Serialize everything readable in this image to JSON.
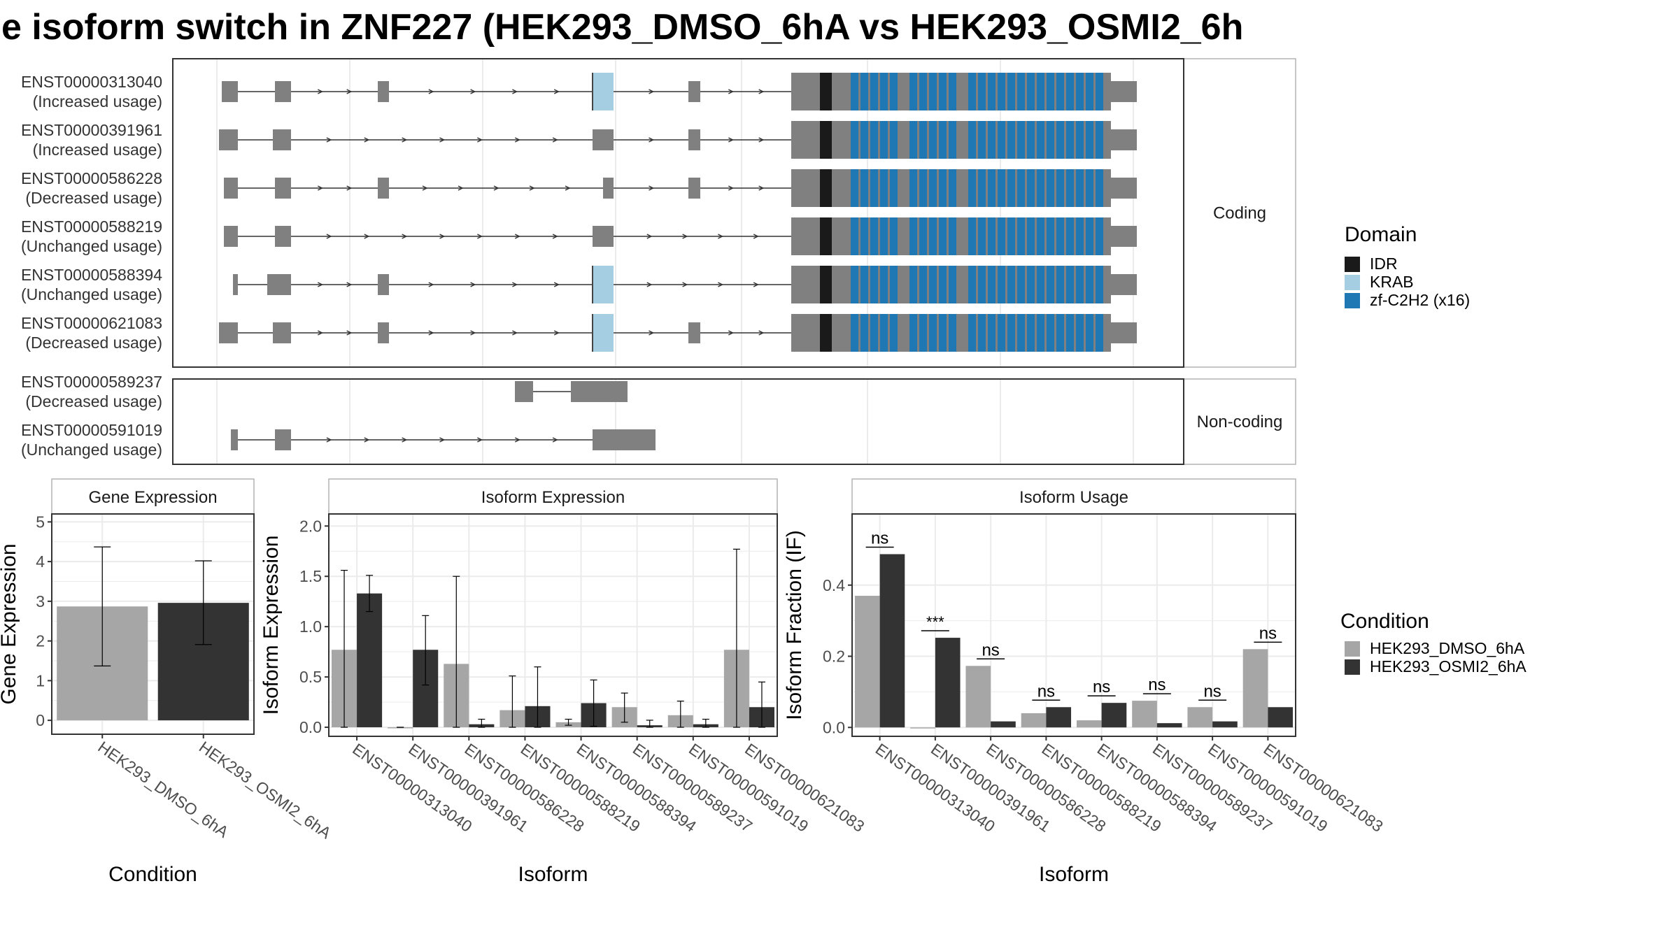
{
  "title": "e isoform switch in ZNF227 (HEK293_DMSO_6hA vs HEK293_OSMI2_6h",
  "colors": {
    "exon": "#808080",
    "IDR": "#1a1a1a",
    "KRAB": "#a6cee3",
    "zf": "#1f78b4",
    "cond1": "#a6a6a6",
    "cond2": "#333333",
    "grid": "#ebebeb",
    "frame": "#333333",
    "strip_border": "#b3b3b3"
  },
  "structure": {
    "coding_label": "Coding",
    "noncoding_label": "Non-coding",
    "coding": [
      {
        "id": "ENST00000313040",
        "usage": "(Increased usage)",
        "variant": "a"
      },
      {
        "id": "ENST00000391961",
        "usage": "(Increased usage)",
        "variant": "b"
      },
      {
        "id": "ENST00000586228",
        "usage": "(Decreased usage)",
        "variant": "c"
      },
      {
        "id": "ENST00000588219",
        "usage": "(Unchanged usage)",
        "variant": "d"
      },
      {
        "id": "ENST00000588394",
        "usage": "(Unchanged usage)",
        "variant": "e"
      },
      {
        "id": "ENST00000621083",
        "usage": "(Decreased usage)",
        "variant": "f"
      }
    ],
    "noncoding": [
      {
        "id": "ENST00000589237",
        "usage": "(Decreased usage)",
        "variant": "g"
      },
      {
        "id": "ENST00000591019",
        "usage": "(Unchanged usage)",
        "variant": "h"
      }
    ],
    "domain_legend": {
      "title": "Domain",
      "items": [
        {
          "name": "IDR",
          "color_key": "IDR"
        },
        {
          "name": "KRAB",
          "color_key": "KRAB"
        },
        {
          "name": "zf-C2H2 (x16)",
          "color_key": "zf"
        }
      ]
    }
  },
  "condition_legend": {
    "title": "Condition",
    "items": [
      "HEK293_DMSO_6hA",
      "HEK293_OSMI2_6hA"
    ]
  },
  "chart_data": [
    {
      "type": "bar",
      "title": "Gene Expression",
      "xlabel": "Condition",
      "ylabel": "Gene Expression",
      "ylim": [
        -0.35,
        5.2
      ],
      "yticks": [
        0,
        1,
        2,
        3,
        4,
        5
      ],
      "categories": [
        "HEK293_DMSO_6hA",
        "HEK293_OSMI2_6hA"
      ],
      "values": [
        2.87,
        2.96
      ],
      "errors_low": [
        1.37,
        1.91
      ],
      "errors_high": [
        4.37,
        4.02
      ]
    },
    {
      "type": "bar",
      "title": "Isoform Expression",
      "xlabel": "Isoform",
      "ylabel": "Isoform Expression",
      "ylim": [
        -0.09,
        2.12
      ],
      "yticks": [
        0.0,
        0.5,
        1.0,
        1.5,
        2.0
      ],
      "tick_labels": [
        "0.0",
        "0.5",
        "1.0",
        "1.5",
        "2.0"
      ],
      "categories": [
        "ENST00000313040",
        "ENST00000391961",
        "ENST00000586228",
        "ENST00000588219",
        "ENST00000588394",
        "ENST00000589237",
        "ENST00000591019",
        "ENST00000621083"
      ],
      "series": [
        {
          "name": "HEK293_DMSO_6hA",
          "values": [
            0.77,
            0.0,
            0.63,
            0.17,
            0.05,
            0.2,
            0.12,
            0.77
          ],
          "err_low": [
            0.0,
            0.0,
            0.0,
            0.0,
            0.02,
            0.05,
            0.0,
            0.0
          ],
          "err_high": [
            1.56,
            0.0,
            1.5,
            0.51,
            0.08,
            0.34,
            0.26,
            1.77
          ]
        },
        {
          "name": "HEK293_OSMI2_6hA",
          "values": [
            1.33,
            0.77,
            0.03,
            0.21,
            0.24,
            0.02,
            0.03,
            0.2
          ],
          "err_low": [
            1.15,
            0.42,
            0.0,
            0.0,
            0.01,
            0.0,
            0.0,
            0.0
          ],
          "err_high": [
            1.51,
            1.11,
            0.08,
            0.6,
            0.47,
            0.07,
            0.08,
            0.45
          ]
        }
      ]
    },
    {
      "type": "bar",
      "title": "Isoform Usage",
      "xlabel": "Isoform",
      "ylabel": "Isoform Fraction (IF)",
      "ylim": [
        -0.025,
        0.6
      ],
      "yticks": [
        0.0,
        0.2,
        0.4
      ],
      "tick_labels": [
        "0.0",
        "0.2",
        "0.4"
      ],
      "categories": [
        "ENST00000313040",
        "ENST00000391961",
        "ENST00000586228",
        "ENST00000588219",
        "ENST00000588394",
        "ENST00000589237",
        "ENST00000591019",
        "ENST00000621083"
      ],
      "series": [
        {
          "name": "HEK293_DMSO_6hA",
          "values": [
            0.37,
            0.0,
            0.173,
            0.04,
            0.02,
            0.075,
            0.057,
            0.22
          ]
        },
        {
          "name": "HEK293_OSMI2_6hA",
          "values": [
            0.487,
            0.252,
            0.017,
            0.057,
            0.069,
            0.012,
            0.017,
            0.057
          ]
        }
      ],
      "significance": [
        "ns",
        "***",
        "ns",
        "ns",
        "ns",
        "ns",
        "ns",
        "ns"
      ]
    }
  ]
}
